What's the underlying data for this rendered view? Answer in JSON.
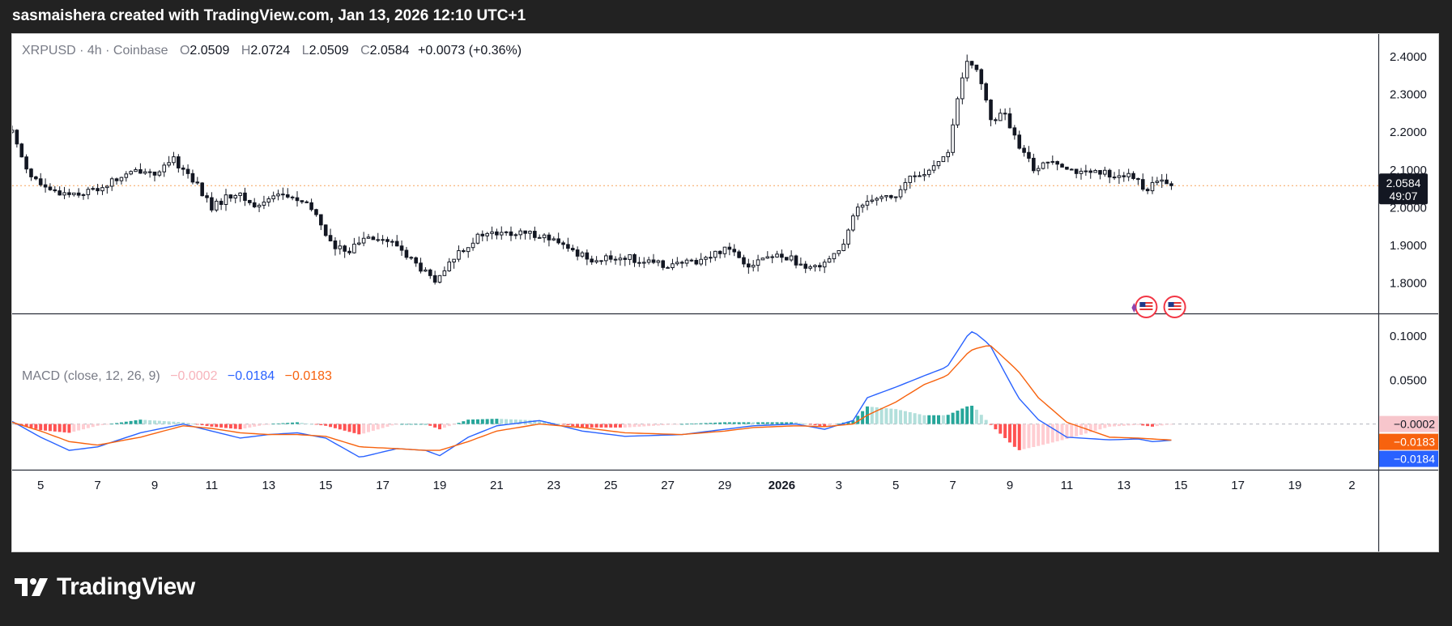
{
  "header": {
    "text": "sasmaishera created with TradingView.com, Jan 13, 2026 12:10 UTC+1"
  },
  "legend": {
    "symbol": "XRPUSD · 4h · Coinbase",
    "o_label": "O",
    "o": "2.0509",
    "h_label": "H",
    "h": "2.0724",
    "l_label": "L",
    "l": "2.0509",
    "c_label": "C",
    "c": "2.0584",
    "change": "+0.0073 (+0.36%)"
  },
  "macd_legend": {
    "label": "MACD (close, 12, 26, 9)",
    "hist": "−0.0002",
    "macd": "−0.0184",
    "signal": "−0.0183"
  },
  "price_badge": {
    "price": "2.0584",
    "countdown": "49:07",
    "value": 2.0584
  },
  "macd_badges": [
    {
      "text": "−0.0002",
      "value": -0.0002,
      "bg": "#f7c6cc",
      "fg": "#131722"
    },
    {
      "text": "−0.0183",
      "value": -0.0183,
      "bg": "#f7620e",
      "fg": "#ffffff"
    },
    {
      "text": "−0.0184",
      "value": -0.0184,
      "bg": "#2962ff",
      "fg": "#ffffff"
    }
  ],
  "footer": {
    "brand": "TradingView"
  },
  "colors": {
    "candle": "#131722",
    "macd_line": "#2962ff",
    "signal_line": "#f7620e",
    "hist_pos_strong": "#26a69a",
    "hist_pos_weak": "#b2dfdb",
    "hist_neg_strong": "#ff5252",
    "hist_neg_weak": "#ffcdd2",
    "price_line": "#f7a35c"
  },
  "chart_data": {
    "type": "candlestick",
    "symbol": "XRPUSD",
    "interval": "4h",
    "x_tick_labels": [
      "5",
      "7",
      "9",
      "11",
      "13",
      "15",
      "17",
      "19",
      "21",
      "23",
      "25",
      "27",
      "29",
      "2026",
      "3",
      "5",
      "7",
      "9",
      "11",
      "13",
      "15",
      "17",
      "19",
      "2"
    ],
    "price_ticks": [
      "2.4000",
      "2.3000",
      "2.2000",
      "2.1000",
      "2.0000",
      "1.9000",
      "1.8000"
    ],
    "price_range": [
      1.72,
      2.46
    ],
    "macd_ticks": [
      "0.1000",
      "0.0500",
      "0.0000"
    ],
    "macd_range": [
      -0.052,
      0.125
    ],
    "last_close": 2.0584,
    "close_keypoints": [
      {
        "day": 4.0,
        "price": 2.2
      },
      {
        "day": 4.6,
        "price": 2.09
      },
      {
        "day": 5.3,
        "price": 2.04
      },
      {
        "day": 6.5,
        "price": 2.04
      },
      {
        "day": 7.0,
        "price": 2.05
      },
      {
        "day": 7.8,
        "price": 2.08
      },
      {
        "day": 8.5,
        "price": 2.1
      },
      {
        "day": 9.2,
        "price": 2.09
      },
      {
        "day": 9.6,
        "price": 2.13
      },
      {
        "day": 10.3,
        "price": 2.08
      },
      {
        "day": 11.0,
        "price": 2.0
      },
      {
        "day": 11.8,
        "price": 2.04
      },
      {
        "day": 12.6,
        "price": 2.0
      },
      {
        "day": 13.2,
        "price": 2.04
      },
      {
        "day": 14.0,
        "price": 2.02
      },
      {
        "day": 14.6,
        "price": 1.99
      },
      {
        "day": 15.3,
        "price": 1.89
      },
      {
        "day": 15.9,
        "price": 1.89
      },
      {
        "day": 16.5,
        "price": 1.93
      },
      {
        "day": 17.5,
        "price": 1.9
      },
      {
        "day": 18.3,
        "price": 1.84
      },
      {
        "day": 18.9,
        "price": 1.8
      },
      {
        "day": 19.6,
        "price": 1.88
      },
      {
        "day": 20.5,
        "price": 1.93
      },
      {
        "day": 21.5,
        "price": 1.93
      },
      {
        "day": 22.5,
        "price": 1.93
      },
      {
        "day": 23.5,
        "price": 1.89
      },
      {
        "day": 24.5,
        "price": 1.86
      },
      {
        "day": 25.5,
        "price": 1.87
      },
      {
        "day": 26.5,
        "price": 1.85
      },
      {
        "day": 27.5,
        "price": 1.85
      },
      {
        "day": 28.5,
        "price": 1.87
      },
      {
        "day": 29.1,
        "price": 1.9
      },
      {
        "day": 29.8,
        "price": 1.85
      },
      {
        "day": 30.5,
        "price": 1.87
      },
      {
        "day": 31.3,
        "price": 1.87
      },
      {
        "day": 31.8,
        "price": 1.83
      },
      {
        "day": 32.5,
        "price": 1.86
      },
      {
        "day": 33.2,
        "price": 1.9
      },
      {
        "day": 33.6,
        "price": 2.0
      },
      {
        "day": 34.2,
        "price": 2.03
      },
      {
        "day": 35.0,
        "price": 2.03
      },
      {
        "day": 35.5,
        "price": 2.08
      },
      {
        "day": 36.3,
        "price": 2.1
      },
      {
        "day": 36.8,
        "price": 2.14
      },
      {
        "day": 37.2,
        "price": 2.3
      },
      {
        "day": 37.5,
        "price": 2.38
      },
      {
        "day": 37.9,
        "price": 2.37
      },
      {
        "day": 38.3,
        "price": 2.23
      },
      {
        "day": 38.8,
        "price": 2.25
      },
      {
        "day": 39.3,
        "price": 2.16
      },
      {
        "day": 39.9,
        "price": 2.1
      },
      {
        "day": 40.5,
        "price": 2.13
      },
      {
        "day": 41.0,
        "price": 2.11
      },
      {
        "day": 41.5,
        "price": 2.09
      },
      {
        "day": 42.5,
        "price": 2.09
      },
      {
        "day": 43.3,
        "price": 2.08
      },
      {
        "day": 43.8,
        "price": 2.05
      },
      {
        "day": 44.3,
        "price": 2.07
      },
      {
        "day": 44.7,
        "price": 2.0584
      }
    ],
    "macd_keypoints": [
      {
        "day": 4.0,
        "macd": 0.003,
        "signal": 0.002
      },
      {
        "day": 5.0,
        "macd": -0.015,
        "signal": -0.008
      },
      {
        "day": 6.0,
        "macd": -0.03,
        "signal": -0.02
      },
      {
        "day": 7.0,
        "macd": -0.026,
        "signal": -0.024
      },
      {
        "day": 8.5,
        "macd": -0.01,
        "signal": -0.015
      },
      {
        "day": 10.0,
        "macd": 0.0,
        "signal": -0.002
      },
      {
        "day": 11.0,
        "macd": -0.008,
        "signal": -0.005
      },
      {
        "day": 12.0,
        "macd": -0.016,
        "signal": -0.01
      },
      {
        "day": 13.0,
        "macd": -0.012,
        "signal": -0.012
      },
      {
        "day": 14.0,
        "macd": -0.01,
        "signal": -0.012
      },
      {
        "day": 15.0,
        "macd": -0.016,
        "signal": -0.014
      },
      {
        "day": 16.2,
        "macd": -0.038,
        "signal": -0.026
      },
      {
        "day": 17.5,
        "macd": -0.028,
        "signal": -0.028
      },
      {
        "day": 18.5,
        "macd": -0.03,
        "signal": -0.03
      },
      {
        "day": 19.0,
        "macd": -0.036,
        "signal": -0.03
      },
      {
        "day": 20.0,
        "macd": -0.015,
        "signal": -0.02
      },
      {
        "day": 21.0,
        "macd": -0.002,
        "signal": -0.008
      },
      {
        "day": 22.5,
        "macd": 0.004,
        "signal": 0.0
      },
      {
        "day": 24.0,
        "macd": -0.008,
        "signal": -0.004
      },
      {
        "day": 25.5,
        "macd": -0.014,
        "signal": -0.01
      },
      {
        "day": 27.5,
        "macd": -0.012,
        "signal": -0.012
      },
      {
        "day": 29.0,
        "macd": -0.006,
        "signal": -0.008
      },
      {
        "day": 30.0,
        "macd": -0.002,
        "signal": -0.004
      },
      {
        "day": 31.5,
        "macd": 0.0,
        "signal": -0.002
      },
      {
        "day": 32.5,
        "macd": -0.006,
        "signal": -0.003
      },
      {
        "day": 33.5,
        "macd": 0.004,
        "signal": 0.0
      },
      {
        "day": 34.0,
        "macd": 0.03,
        "signal": 0.01
      },
      {
        "day": 35.0,
        "macd": 0.042,
        "signal": 0.025
      },
      {
        "day": 36.0,
        "macd": 0.055,
        "signal": 0.045
      },
      {
        "day": 36.8,
        "macd": 0.065,
        "signal": 0.055
      },
      {
        "day": 37.5,
        "macd": 0.1,
        "signal": 0.08
      },
      {
        "day": 37.7,
        "macd": 0.106,
        "signal": 0.085
      },
      {
        "day": 38.3,
        "macd": 0.09,
        "signal": 0.09
      },
      {
        "day": 39.3,
        "macd": 0.03,
        "signal": 0.06
      },
      {
        "day": 40.0,
        "macd": 0.005,
        "signal": 0.03
      },
      {
        "day": 41.0,
        "macd": -0.015,
        "signal": 0.002
      },
      {
        "day": 42.5,
        "macd": -0.018,
        "signal": -0.015
      },
      {
        "day": 43.5,
        "macd": -0.017,
        "signal": -0.016
      },
      {
        "day": 44.0,
        "macd": -0.02,
        "signal": -0.017
      },
      {
        "day": 44.7,
        "macd": -0.0184,
        "signal": -0.0183
      }
    ]
  }
}
